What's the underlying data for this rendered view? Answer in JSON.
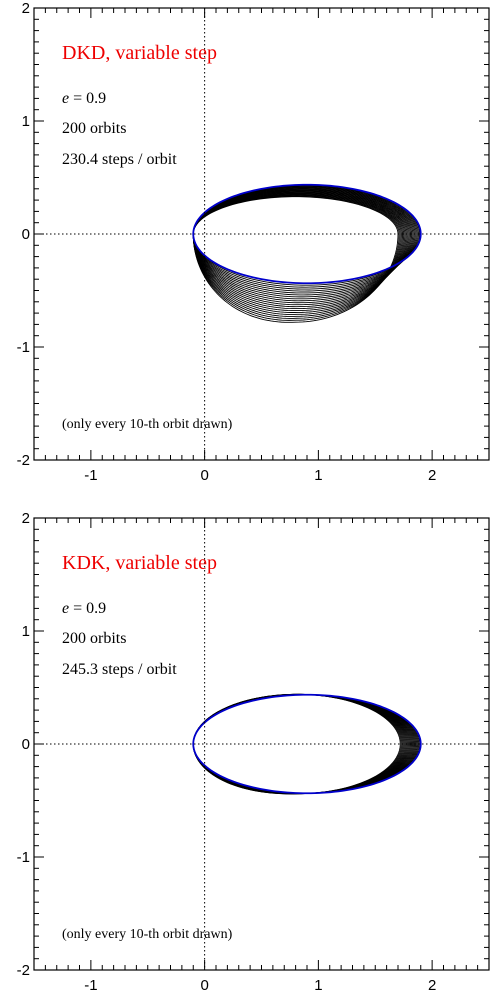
{
  "colors": {
    "title": "#ee0000",
    "first_orbit": "#0000cc",
    "orbits": "#000000"
  },
  "chart_data": [
    {
      "type": "line",
      "title": "DKD, variable step",
      "e_label": "e",
      "e_value": "= 0.9",
      "orbits_text": "200 orbits",
      "steps_text": "230.4 steps / orbit",
      "note": "(only every 10-th orbit drawn)",
      "xlim": [
        -1.5,
        2.5
      ],
      "ylim": [
        -2,
        2
      ],
      "xticks": [
        -1,
        0,
        1,
        2
      ],
      "yticks": [
        -2,
        -1,
        0,
        1,
        2
      ],
      "grid": false,
      "zero_lines": true,
      "orbit_model": {
        "eccentricity": 0.9,
        "semi_major_axis": 1.0,
        "orbits_drawn": 21,
        "final_orbit": {
          "x_min": -0.1,
          "x_max": 1.7,
          "y_min": -0.78,
          "y_max": 0.33
        }
      }
    },
    {
      "type": "line",
      "title": "KDK, variable step",
      "e_label": "e",
      "e_value": "= 0.9",
      "orbits_text": "200 orbits",
      "steps_text": "245.3 steps / orbit",
      "note": "(only every 10-th orbit drawn)",
      "xlim": [
        -1.5,
        2.5
      ],
      "ylim": [
        -2,
        2
      ],
      "xticks": [
        -1,
        0,
        1,
        2
      ],
      "yticks": [
        -2,
        -1,
        0,
        1,
        2
      ],
      "grid": false,
      "zero_lines": true,
      "orbit_model": {
        "eccentricity": 0.9,
        "semi_major_axis": 1.0,
        "orbits_drawn": 21,
        "final_orbit": {
          "x_min": -0.1,
          "x_max": 1.72,
          "y_min": -0.44,
          "y_max": 0.44
        }
      }
    }
  ]
}
